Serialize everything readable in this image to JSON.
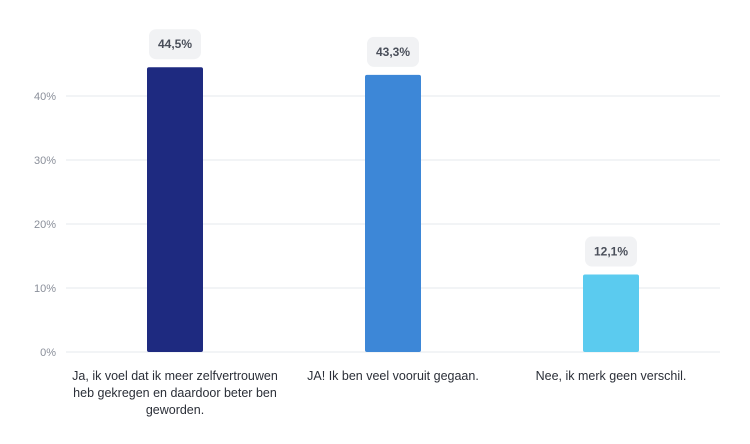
{
  "chart_data": {
    "type": "bar",
    "categories": [
      "Ja, ik voel dat ik meer zelfvertrouwen heb gekregen en daardoor beter ben geworden.",
      "JA! Ik ben veel vooruit gegaan.",
      "Nee, ik merk geen verschil."
    ],
    "values": [
      44.5,
      43.3,
      12.1
    ],
    "value_labels": [
      "44,5%",
      "43,3%",
      "12,1%"
    ],
    "bar_colors": [
      "#1e2a80",
      "#3d87d7",
      "#5bcbef"
    ],
    "yticks": [
      0,
      10,
      20,
      30,
      40
    ],
    "ytick_labels": [
      "0%",
      "10%",
      "20%",
      "30%",
      "40%"
    ],
    "ylim": [
      0,
      50
    ],
    "grid": true,
    "legend": "none",
    "title": "",
    "xlabel": "",
    "ylabel": ""
  }
}
